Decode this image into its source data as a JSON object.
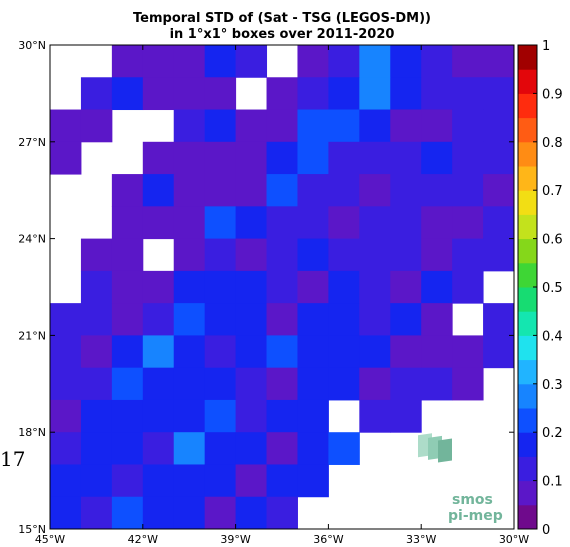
{
  "chart_data": {
    "type": "heatmap",
    "title": [
      "Temporal STD of (Sat - TSG (LEGOS-DM))",
      "in 1°x1° boxes over 2011-2020"
    ],
    "x_range": [
      -45,
      -30
    ],
    "y_range": [
      15,
      30
    ],
    "x_ticks": [
      {
        "value": -45,
        "label": "45°W"
      },
      {
        "value": -42,
        "label": "42°W"
      },
      {
        "value": -39,
        "label": "39°W"
      },
      {
        "value": -36,
        "label": "36°W"
      },
      {
        "value": -33,
        "label": "33°W"
      },
      {
        "value": -30,
        "label": "30°W"
      }
    ],
    "y_ticks": [
      {
        "value": 15,
        "label": "15°N"
      },
      {
        "value": 18,
        "label": "18°N"
      },
      {
        "value": 21,
        "label": "21°N"
      },
      {
        "value": 24,
        "label": "24°N"
      },
      {
        "value": 27,
        "label": "27°N"
      },
      {
        "value": 30,
        "label": "30°N"
      }
    ],
    "colorbar": {
      "min": 0,
      "max": 1,
      "ticks": [
        "0",
        "0.1",
        "0.2",
        "0.3",
        "0.4",
        "0.5",
        "0.6",
        "0.7",
        "0.8",
        "0.9",
        "1"
      ],
      "colors": [
        "#6f0a8c",
        "#5b17c8",
        "#3a1ee0",
        "#1525f0",
        "#0e50ff",
        "#1784ff",
        "#21b4ff",
        "#1fe2ee",
        "#14e6b0",
        "#17dc72",
        "#3ed635",
        "#85d71a",
        "#c3e21c",
        "#f2de14",
        "#ffb618",
        "#ff8c14",
        "#ff5c14",
        "#ff2c0e",
        "#e3060b",
        "#a10000"
      ]
    },
    "grid_rows_north_to_south": [
      [
        -1,
        -1,
        0.05,
        0.05,
        0.08,
        0.18,
        0.12,
        -1,
        0.05,
        0.12,
        0.28,
        0.18,
        0.12,
        0.08,
        0.05
      ],
      [
        -1,
        0.12,
        0.18,
        0.05,
        0.05,
        0.08,
        -1,
        0.08,
        0.12,
        0.18,
        0.28,
        0.18,
        0.12,
        0.12,
        0.12
      ],
      [
        0.08,
        0.08,
        -1,
        -1,
        0.12,
        0.18,
        0.08,
        0.08,
        0.22,
        0.22,
        0.18,
        0.08,
        0.08,
        0.12,
        0.12
      ],
      [
        0.05,
        -1,
        -1,
        0.05,
        0.08,
        0.08,
        0.05,
        0.18,
        0.22,
        0.12,
        0.12,
        0.12,
        0.18,
        0.12,
        0.12
      ],
      [
        -1,
        -1,
        0.05,
        0.18,
        0.05,
        0.05,
        0.08,
        0.22,
        0.12,
        0.12,
        0.08,
        0.12,
        0.12,
        0.12,
        0.05
      ],
      [
        -1,
        -1,
        0.08,
        0.08,
        0.05,
        0.22,
        0.18,
        0.12,
        0.12,
        0.08,
        0.12,
        0.12,
        0.08,
        0.08,
        0.12
      ],
      [
        -1,
        0.08,
        0.08,
        -1,
        0.08,
        0.12,
        0.08,
        0.12,
        0.18,
        0.12,
        0.12,
        0.12,
        0.05,
        0.12,
        0.12
      ],
      [
        -1,
        0.12,
        0.05,
        0.05,
        0.18,
        0.18,
        0.18,
        0.12,
        0.08,
        0.18,
        0.12,
        0.05,
        0.18,
        0.12,
        -1
      ],
      [
        0.12,
        0.12,
        0.08,
        0.12,
        0.22,
        0.18,
        0.18,
        0.05,
        0.18,
        0.18,
        0.12,
        0.18,
        0.08,
        -1,
        0.12
      ],
      [
        0.12,
        0.05,
        0.18,
        0.28,
        0.18,
        0.12,
        0.18,
        0.22,
        0.18,
        0.18,
        0.18,
        0.05,
        0.08,
        0.08,
        0.12
      ],
      [
        0.12,
        0.12,
        0.22,
        0.18,
        0.18,
        0.18,
        0.12,
        0.08,
        0.18,
        0.18,
        0.08,
        0.12,
        0.12,
        0.08,
        -1
      ],
      [
        0.05,
        0.18,
        0.18,
        0.18,
        0.18,
        0.22,
        0.12,
        0.18,
        0.18,
        -1,
        0.12,
        0.12,
        -1,
        -1,
        -1
      ],
      [
        0.12,
        0.18,
        0.18,
        0.12,
        0.28,
        0.18,
        0.18,
        0.05,
        0.18,
        0.22,
        -1,
        -1,
        -1,
        -1,
        -1
      ],
      [
        0.18,
        0.18,
        0.12,
        0.18,
        0.18,
        0.18,
        0.05,
        0.18,
        0.18,
        -1,
        -1,
        -1,
        -1,
        -1,
        -1
      ],
      [
        0.18,
        0.12,
        0.22,
        0.18,
        0.18,
        0.05,
        0.18,
        0.12,
        -1,
        -1,
        -1,
        -1,
        -1,
        -1,
        -1
      ]
    ],
    "no_data_value": -1
  },
  "logo": {
    "line1": "smos",
    "line2": "pi-mep"
  },
  "stray_text": "17"
}
